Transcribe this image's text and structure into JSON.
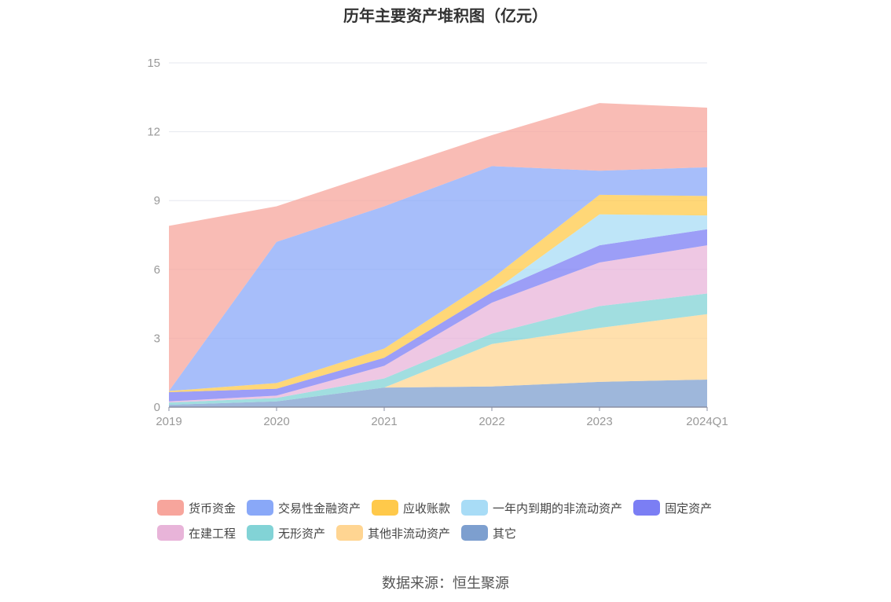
{
  "chart_data": {
    "type": "area",
    "stacked": true,
    "title": "历年主要资产堆积图（亿元）",
    "categories": [
      "2019",
      "2020",
      "2021",
      "2022",
      "2023",
      "2024Q1"
    ],
    "ylim": [
      0,
      15
    ],
    "yticks": [
      "0",
      "3",
      "6",
      "9",
      "12",
      "15"
    ],
    "grid": true,
    "legend_position": "bottom",
    "series": [
      {
        "name": "其它",
        "color": "#7d9fcf",
        "values": [
          0.1,
          0.25,
          0.85,
          0.9,
          1.1,
          1.2
        ]
      },
      {
        "name": "其他非流动资产",
        "color": "#ffd592",
        "values": [
          0.0,
          0.0,
          0.0,
          1.85,
          2.35,
          2.85
        ]
      },
      {
        "name": "无形资产",
        "color": "#82d3d6",
        "values": [
          0.1,
          0.15,
          0.4,
          0.45,
          0.95,
          0.9
        ]
      },
      {
        "name": "在建工程",
        "color": "#e8b4d9",
        "values": [
          0.05,
          0.1,
          0.55,
          1.35,
          1.9,
          2.1
        ]
      },
      {
        "name": "固定资产",
        "color": "#7b7ef4",
        "values": [
          0.4,
          0.3,
          0.35,
          0.45,
          0.75,
          0.7
        ]
      },
      {
        "name": "一年内到期的非流动资产",
        "color": "#a8dcf6",
        "values": [
          0.0,
          0.0,
          0.0,
          0.0,
          1.35,
          0.6
        ]
      },
      {
        "name": "应收账款",
        "color": "#ffc94a",
        "values": [
          0.05,
          0.25,
          0.4,
          0.6,
          0.85,
          0.85
        ]
      },
      {
        "name": "交易性金融资产",
        "color": "#89a8f8",
        "values": [
          0.0,
          6.15,
          6.2,
          4.9,
          1.05,
          1.25
        ]
      },
      {
        "name": "货币资金",
        "color": "#f7a59c",
        "values": [
          7.2,
          1.55,
          1.55,
          1.35,
          2.95,
          2.6
        ]
      }
    ]
  },
  "legend_rows": [
    [
      {
        "label": "货币资金",
        "color": "#f7a59c"
      },
      {
        "label": "交易性金融资产",
        "color": "#89a8f8"
      },
      {
        "label": "应收账款",
        "color": "#ffc94a"
      },
      {
        "label": "一年内到期的非流动资产",
        "color": "#a8dcf6"
      },
      {
        "label": "固定资产",
        "color": "#7b7ef4"
      }
    ],
    [
      {
        "label": "在建工程",
        "color": "#e8b4d9"
      },
      {
        "label": "无形资产",
        "color": "#82d3d6"
      },
      {
        "label": "其他非流动资产",
        "color": "#ffd592"
      },
      {
        "label": "其它",
        "color": "#7d9fcf"
      }
    ]
  ],
  "source": "数据来源：恒生聚源"
}
